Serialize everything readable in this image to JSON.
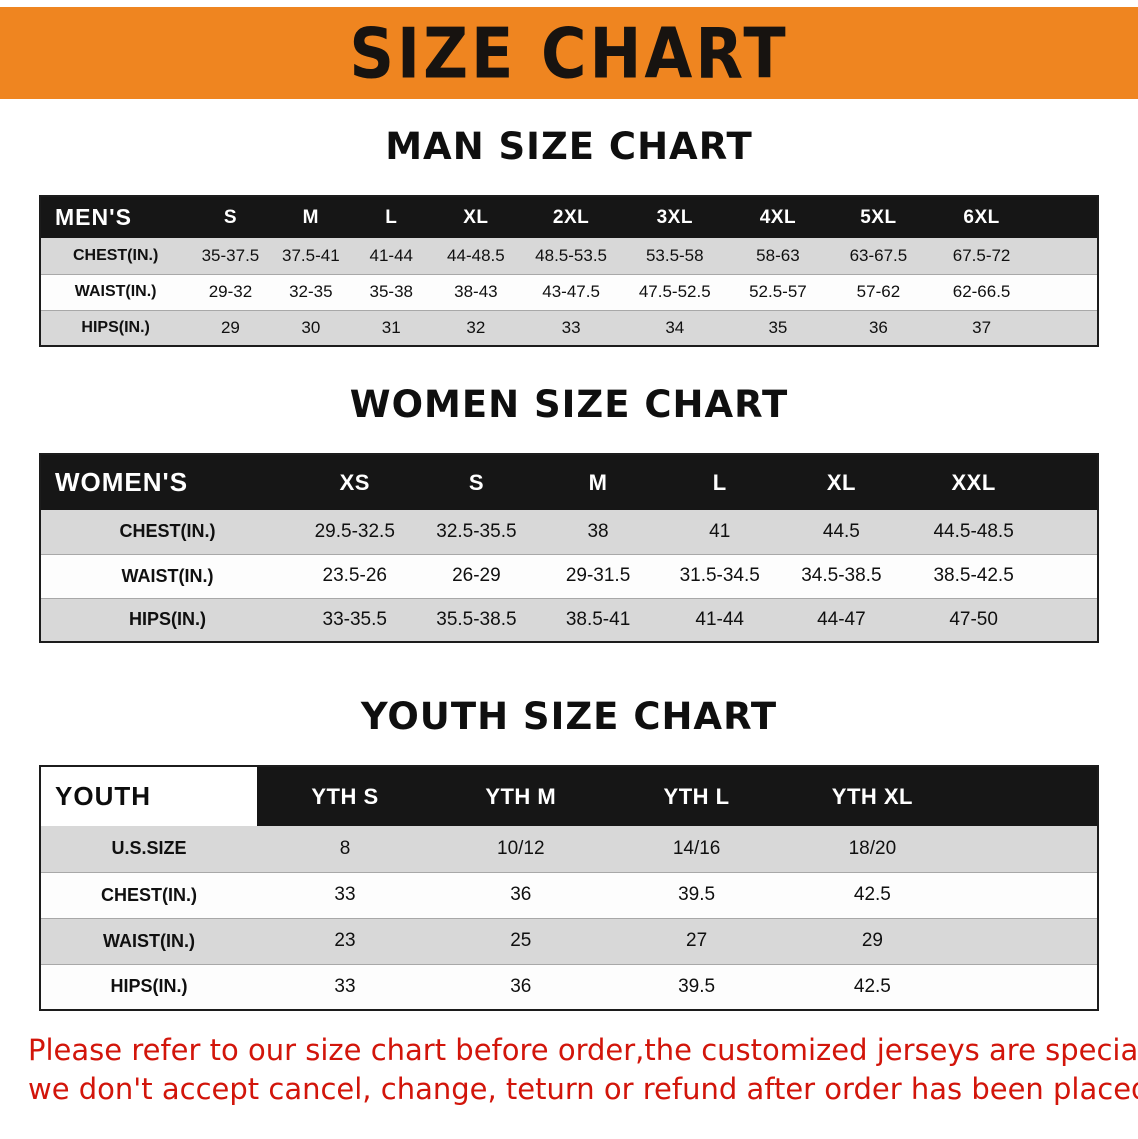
{
  "banner": {
    "title": "SIZE CHART"
  },
  "colors": {
    "banner_bg": "#EF8520",
    "title_text": "#171310",
    "table_header_bg": "#161616",
    "stripe_row_bg": "#D8D8D8",
    "footer_text": "#D2150A"
  },
  "sections": [
    {
      "id": "men",
      "heading": "MAN SIZE CHART",
      "table": {
        "label": "MEN'S",
        "columns": [
          "S",
          "M",
          "L",
          "XL",
          "2XL",
          "3XL",
          "4XL",
          "5XL",
          "6XL"
        ],
        "rows": [
          {
            "label": "CHEST(IN.)",
            "values": [
              "35-37.5",
              "37.5-41",
              "41-44",
              "44-48.5",
              "48.5-53.5",
              "53.5-58",
              "58-63",
              "63-67.5",
              "67.5-72"
            ]
          },
          {
            "label": "WAIST(IN.)",
            "values": [
              "29-32",
              "32-35",
              "35-38",
              "38-43",
              "43-47.5",
              "47.5-52.5",
              "52.5-57",
              "57-62",
              "62-66.5"
            ]
          },
          {
            "label": "HIPS(IN.)",
            "values": [
              "29",
              "30",
              "31",
              "32",
              "33",
              "34",
              "35",
              "36",
              "37"
            ]
          }
        ]
      }
    },
    {
      "id": "women",
      "heading": "WOMEN SIZE CHART",
      "table": {
        "label": "WOMEN'S",
        "columns": [
          "XS",
          "S",
          "M",
          "L",
          "XL",
          "XXL"
        ],
        "rows": [
          {
            "label": "CHEST(IN.)",
            "values": [
              "29.5-32.5",
              "32.5-35.5",
              "38",
              "41",
              "44.5",
              "44.5-48.5"
            ]
          },
          {
            "label": "WAIST(IN.)",
            "values": [
              "23.5-26",
              "26-29",
              "29-31.5",
              "31.5-34.5",
              "34.5-38.5",
              "38.5-42.5"
            ]
          },
          {
            "label": "HIPS(IN.)",
            "values": [
              "33-35.5",
              "35.5-38.5",
              "38.5-41",
              "41-44",
              "44-47",
              "47-50"
            ]
          }
        ]
      }
    },
    {
      "id": "youth",
      "heading": "YOUTH SIZE CHART",
      "table": {
        "label": "YOUTH",
        "columns": [
          "YTH S",
          "YTH M",
          "YTH L",
          "YTH XL"
        ],
        "rows": [
          {
            "label": "U.S.SIZE",
            "values": [
              "8",
              "10/12",
              "14/16",
              "18/20"
            ]
          },
          {
            "label": "CHEST(IN.)",
            "values": [
              "33",
              "36",
              "39.5",
              "42.5"
            ]
          },
          {
            "label": "WAIST(IN.)",
            "values": [
              "23",
              "25",
              "27",
              "29"
            ]
          },
          {
            "label": "HIPS(IN.)",
            "values": [
              "33",
              "36",
              "39.5",
              "42.5"
            ]
          }
        ]
      }
    }
  ],
  "footer": {
    "lines": [
      "Please refer to our size chart before order,the customized jerseys are special products,",
      "we don't accept cancel, change, teturn or refund after order has been placed!"
    ]
  }
}
